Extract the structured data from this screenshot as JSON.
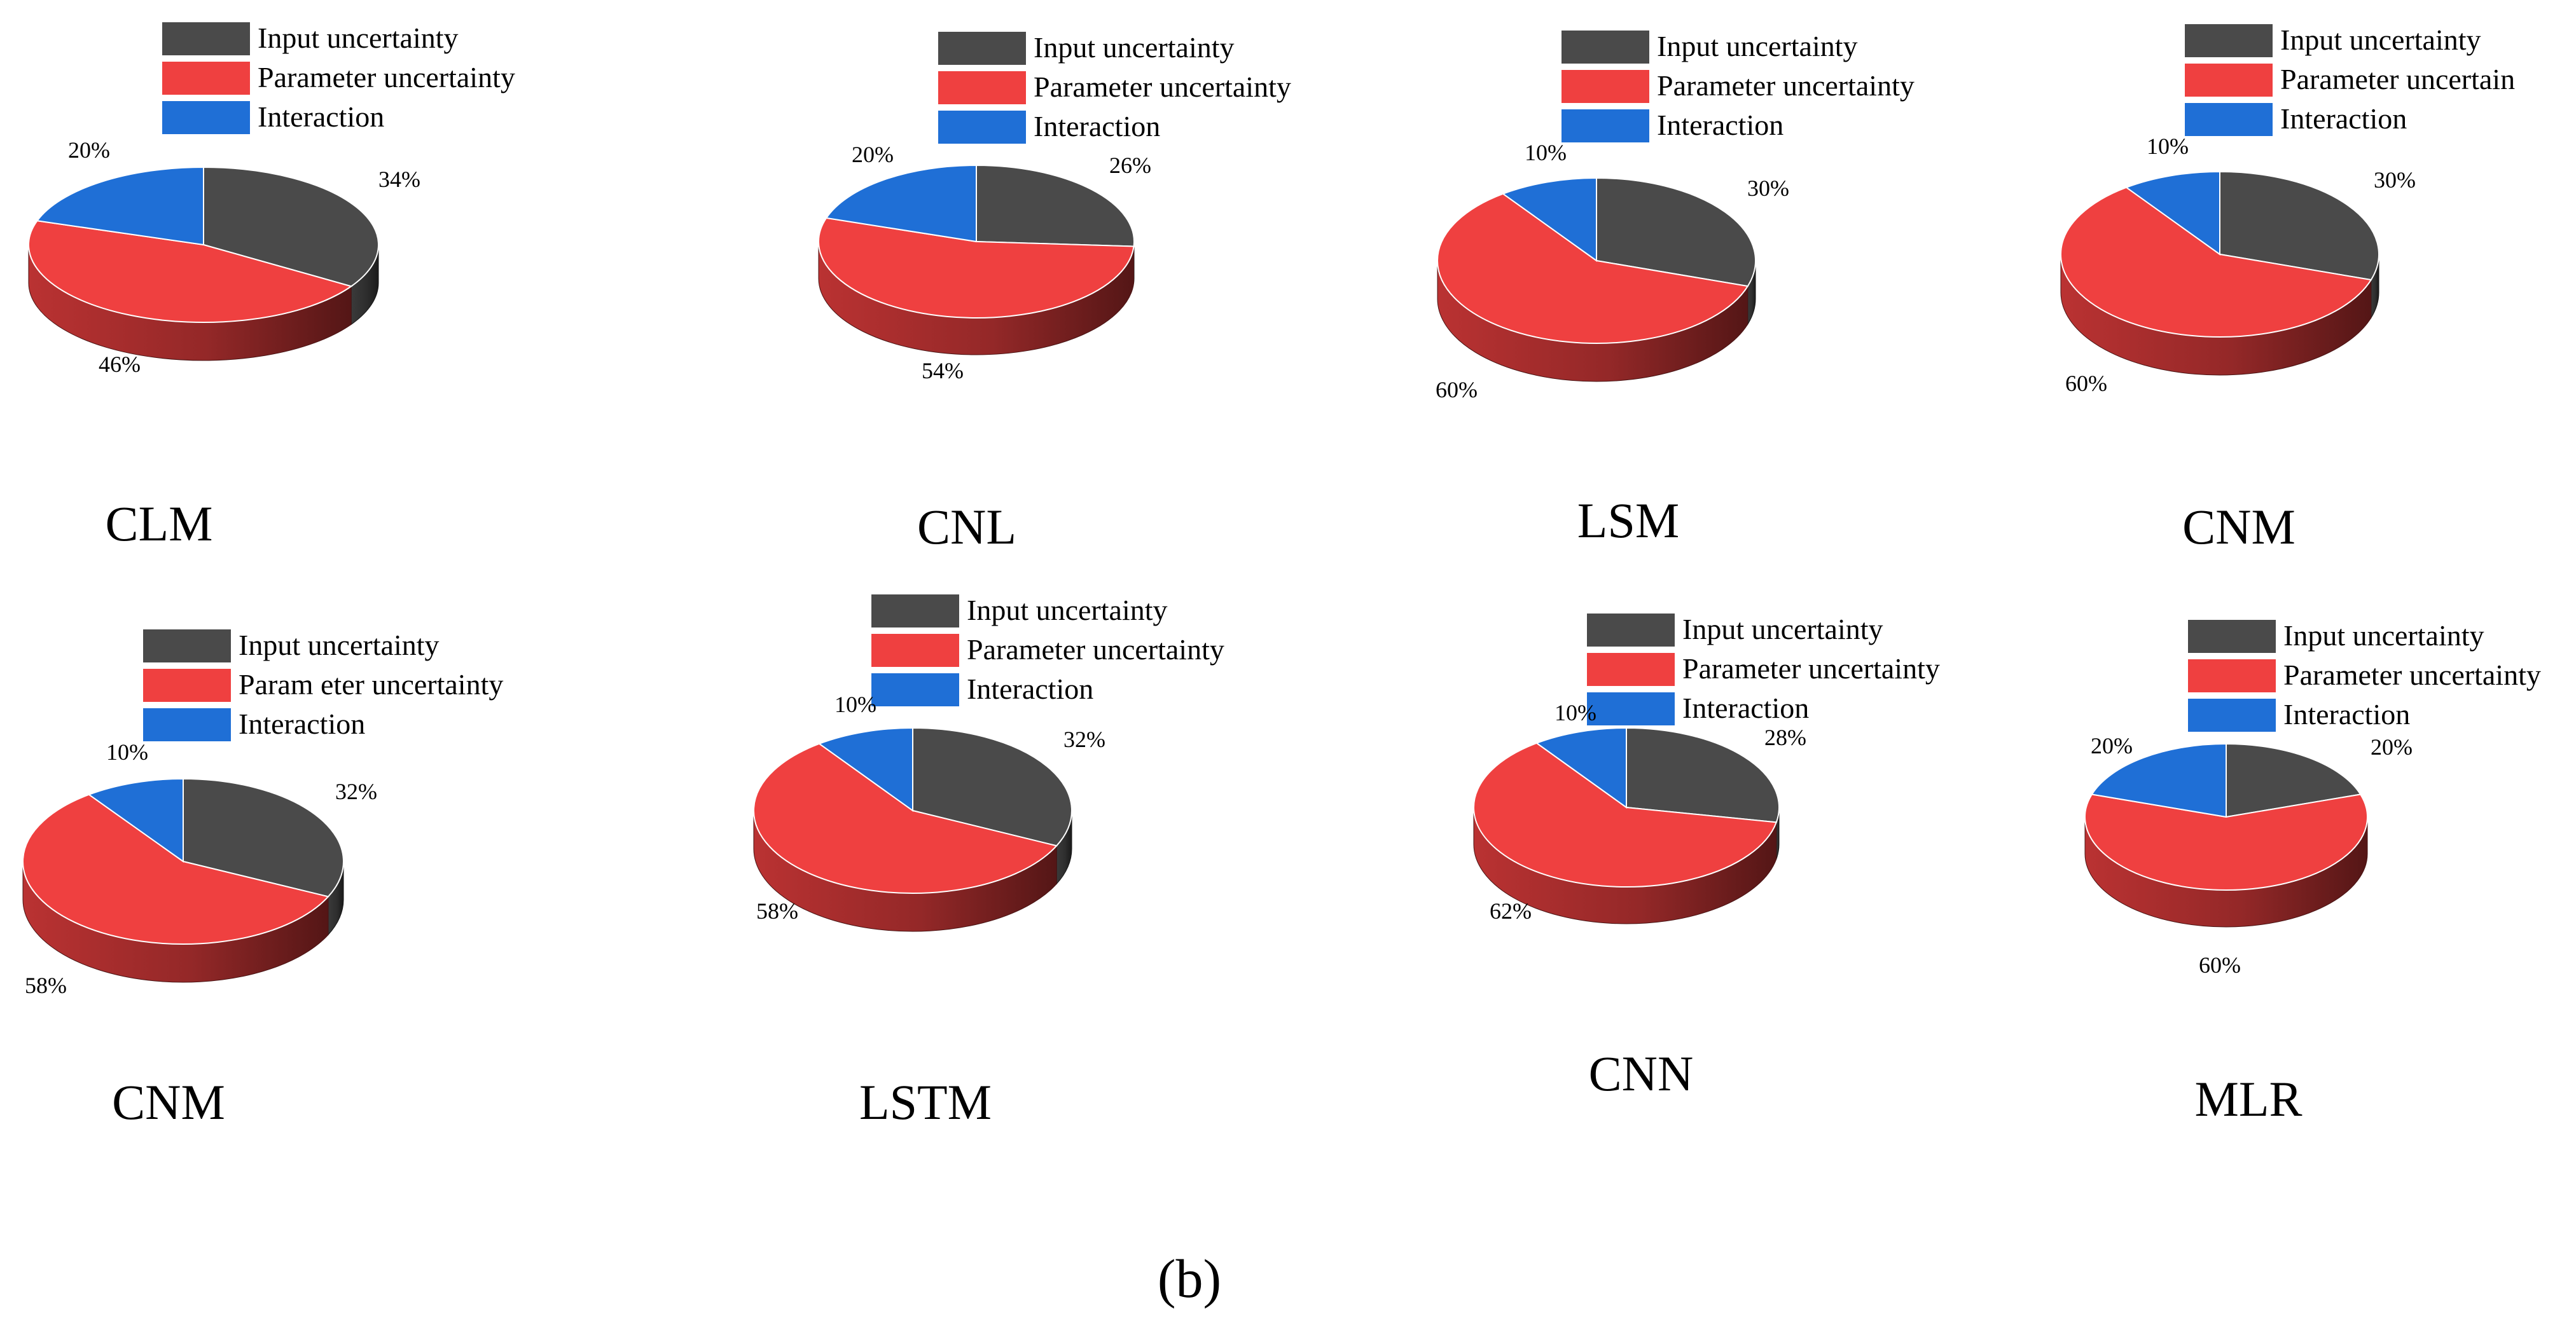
{
  "figure": {
    "panel_label": "(b)"
  },
  "colors": {
    "Input uncertainty": "#4a4a4a",
    "Parameter uncertainty": "#ef4040",
    "Interaction": "#1f6fd6"
  },
  "chart_data": [
    {
      "type": "pie",
      "title": "CLM",
      "labels": [
        "Input uncertainty",
        "Parameter uncertainty",
        "Interaction"
      ],
      "legend_entries": [
        "Input uncertainty",
        "Parameter uncertainty",
        "Interaction"
      ],
      "values": [
        34,
        46,
        20
      ],
      "value_labels": [
        "34%",
        "46%",
        "20%"
      ],
      "style": "3d",
      "legend": "top"
    },
    {
      "type": "pie",
      "title": "CNL",
      "labels": [
        "Input uncertainty",
        "Parameter uncertainty",
        "Interaction"
      ],
      "legend_entries": [
        "Input uncertainty",
        "Parameter uncertainty",
        "Interaction"
      ],
      "values": [
        26,
        54,
        20
      ],
      "value_labels": [
        "26%",
        "54%",
        "20%"
      ],
      "style": "3d",
      "legend": "top"
    },
    {
      "type": "pie",
      "title": "LSM",
      "labels": [
        "Input uncertainty",
        "Parameter uncertainty",
        "Interaction"
      ],
      "legend_entries": [
        "Input uncertainty",
        "Parameter uncertainty",
        "Interaction"
      ],
      "values": [
        30,
        60,
        10
      ],
      "value_labels": [
        "30%",
        "60%",
        "10%"
      ],
      "style": "3d",
      "legend": "top"
    },
    {
      "type": "pie",
      "title": "CNM",
      "labels": [
        "Input uncertainty",
        "Parameter uncertainty",
        "Interaction"
      ],
      "legend_entries": [
        "Input uncertainty",
        "Parameter uncertain",
        "Interaction"
      ],
      "values": [
        30,
        60,
        10
      ],
      "value_labels": [
        "30%",
        "60%",
        "10%"
      ],
      "style": "3d",
      "legend": "top"
    },
    {
      "type": "pie",
      "title": "CNM",
      "labels": [
        "Input uncertainty",
        "Parameter uncertainty",
        "Interaction"
      ],
      "legend_entries": [
        "Input uncertainty",
        "Param eter uncertainty",
        "Interaction"
      ],
      "values": [
        32,
        58,
        10
      ],
      "value_labels": [
        "32%",
        "58%",
        "10%"
      ],
      "style": "3d",
      "legend": "top"
    },
    {
      "type": "pie",
      "title": "LSTM",
      "labels": [
        "Input uncertainty",
        "Parameter uncertainty",
        "Interaction"
      ],
      "legend_entries": [
        "Input uncertainty",
        "Parameter uncertainty",
        "Interaction"
      ],
      "values": [
        32,
        58,
        10
      ],
      "value_labels": [
        "32%",
        "58%",
        "10%"
      ],
      "style": "3d",
      "legend": "top"
    },
    {
      "type": "pie",
      "title": "CNN",
      "labels": [
        "Input uncertainty",
        "Parameter uncertainty",
        "Interaction"
      ],
      "legend_entries": [
        "Input uncertainty",
        "Parameter uncertainty",
        "Interaction"
      ],
      "values": [
        28,
        62,
        10
      ],
      "value_labels": [
        "28%",
        "62%",
        "10%"
      ],
      "style": "3d",
      "legend": "top"
    },
    {
      "type": "pie",
      "title": "MLR",
      "labels": [
        "Input uncertainty",
        "Parameter uncertainty",
        "Interaction"
      ],
      "legend_entries": [
        "Input uncertainty",
        "Parameter uncertainty",
        "Interaction"
      ],
      "values": [
        20,
        60,
        20
      ],
      "value_labels": [
        "20%",
        "60%",
        "20%"
      ],
      "style": "3d",
      "legend": "top"
    }
  ]
}
